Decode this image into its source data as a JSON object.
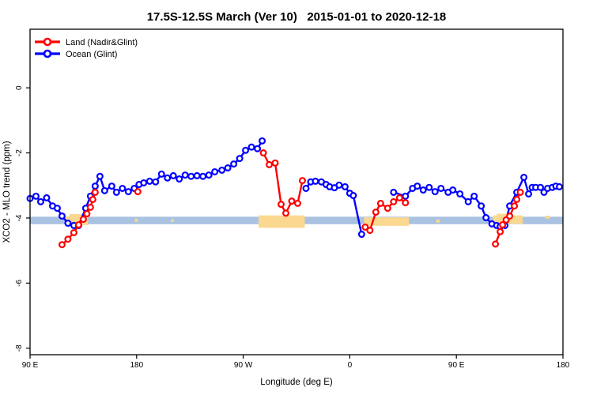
{
  "chart_data": {
    "type": "line",
    "title": "17.5S-12.5S March (Ver 10)   2015-01-01 to 2020-12-18",
    "xlabel": "Longitude (deg E)",
    "ylabel": "XCO2 - MLO trend (ppm)",
    "xlim": [
      90,
      540
    ],
    "ylim": [
      -8.2,
      1.8
    ],
    "grid": false,
    "legend_position": "top-left",
    "x_ticks": [
      {
        "value": 90,
        "label": "90 E"
      },
      {
        "value": 180,
        "label": "180"
      },
      {
        "value": 270,
        "label": "90 W"
      },
      {
        "value": 360,
        "label": "0"
      },
      {
        "value": 450,
        "label": "90 E"
      },
      {
        "value": 540,
        "label": "180"
      }
    ],
    "y_ticks": [
      {
        "value": 0,
        "label": "0"
      },
      {
        "value": -2,
        "label": "-2"
      },
      {
        "value": -4,
        "label": "-4"
      },
      {
        "value": -6,
        "label": "-6"
      },
      {
        "value": -8,
        "label": "-8"
      }
    ],
    "band": {
      "y0": -4.19,
      "y1": -3.96,
      "color": "#a9c2e1",
      "note": "horizontal reference band spanning full x-range"
    },
    "patch_color": "#fbd88f",
    "patches": [
      {
        "x0": 120,
        "x1": 139,
        "y0": -4.22,
        "y1": -3.95
      },
      {
        "x0": 123,
        "x1": 134,
        "y0": -3.98,
        "y1": -3.88
      },
      {
        "x0": 283,
        "x1": 322,
        "y0": -4.3,
        "y1": -3.92
      },
      {
        "x0": 372,
        "x1": 410,
        "y0": -4.24,
        "y1": -3.98
      },
      {
        "x0": 481,
        "x1": 506,
        "y0": -4.18,
        "y1": -3.92
      },
      {
        "x0": 484,
        "x1": 497,
        "y0": -3.99,
        "y1": -3.87
      },
      {
        "x0": 178.5,
        "x1": 181,
        "y0": -4.12,
        "y1": -4.02
      },
      {
        "x0": 209,
        "x1": 211.5,
        "y0": -4.12,
        "y1": -4.04
      },
      {
        "x0": 433,
        "x1": 436,
        "y0": -4.14,
        "y1": -4.05
      },
      {
        "x0": 525,
        "x1": 529,
        "y0": -4.02,
        "y1": -3.93
      }
    ],
    "series": [
      {
        "name": "Land (Nadir&Glint)",
        "color": "#ff0000",
        "marker": "open-circle",
        "segments": [
          [
            [
              117,
              -4.82
            ],
            [
              122,
              -4.65
            ],
            [
              127,
              -4.45
            ],
            [
              131,
              -4.21
            ],
            [
              135,
              -4.04
            ],
            [
              138,
              -3.87
            ],
            [
              141,
              -3.67
            ],
            [
              143,
              -3.43
            ],
            [
              145,
              -3.21
            ]
          ],
          [
            [
              181,
              -3.19
            ]
          ],
          [
            [
              287,
              -2.0
            ],
            [
              292,
              -2.36
            ],
            [
              297,
              -2.31
            ],
            [
              302,
              -3.58
            ],
            [
              306,
              -3.85
            ],
            [
              311,
              -3.48
            ],
            [
              316,
              -3.55
            ],
            [
              320,
              -2.85
            ]
          ],
          [
            [
              373,
              -4.28
            ],
            [
              377,
              -4.38
            ],
            [
              382,
              -3.82
            ],
            [
              386,
              -3.55
            ],
            [
              392,
              -3.7
            ],
            [
              397,
              -3.5
            ],
            [
              402,
              -3.38
            ],
            [
              407,
              -3.53
            ]
          ],
          [
            [
              483,
              -4.8
            ],
            [
              487,
              -4.42
            ],
            [
              489,
              -4.21
            ],
            [
              492,
              -4.06
            ],
            [
              495,
              -3.94
            ],
            [
              499,
              -3.63
            ],
            [
              501,
              -3.43
            ],
            [
              504,
              -3.21
            ]
          ]
        ]
      },
      {
        "name": "Ocean (Glint)",
        "color": "#0000ff",
        "marker": "open-circle",
        "segments": [
          [
            [
              90,
              -3.4
            ],
            [
              95,
              -3.33
            ],
            [
              99,
              -3.5
            ],
            [
              104,
              -3.38
            ],
            [
              109,
              -3.63
            ],
            [
              113,
              -3.7
            ],
            [
              117,
              -3.94
            ],
            [
              122,
              -4.16
            ],
            [
              127,
              -4.23
            ],
            [
              131,
              -4.23
            ],
            [
              137,
              -3.7
            ],
            [
              141,
              -3.33
            ],
            [
              145,
              -3.02
            ],
            [
              149,
              -2.72
            ],
            [
              153,
              -3.16
            ],
            [
              159,
              -3.02
            ],
            [
              163,
              -3.21
            ],
            [
              168,
              -3.09
            ],
            [
              173,
              -3.19
            ],
            [
              178,
              -3.09
            ],
            [
              182,
              -2.97
            ],
            [
              186,
              -2.92
            ],
            [
              191,
              -2.87
            ],
            [
              196,
              -2.89
            ],
            [
              201,
              -2.65
            ],
            [
              206,
              -2.77
            ],
            [
              211,
              -2.7
            ],
            [
              216,
              -2.8
            ],
            [
              221,
              -2.68
            ],
            [
              226,
              -2.72
            ],
            [
              231,
              -2.7
            ],
            [
              236,
              -2.72
            ],
            [
              241,
              -2.68
            ],
            [
              246,
              -2.58
            ],
            [
              252,
              -2.53
            ],
            [
              257,
              -2.46
            ],
            [
              262,
              -2.34
            ],
            [
              267,
              -2.17
            ],
            [
              272,
              -1.92
            ],
            [
              277,
              -1.82
            ],
            [
              282,
              -1.87
            ],
            [
              286,
              -1.63
            ]
          ],
          [
            [
              323,
              -3.09
            ],
            [
              327,
              -2.89
            ],
            [
              331,
              -2.87
            ],
            [
              336,
              -2.89
            ],
            [
              340,
              -2.97
            ],
            [
              343,
              -3.04
            ],
            [
              347,
              -3.07
            ],
            [
              351,
              -2.99
            ],
            [
              356,
              -3.04
            ],
            [
              360,
              -3.24
            ],
            [
              363,
              -3.31
            ],
            [
              370,
              -4.5
            ]
          ],
          [
            [
              397,
              -3.21
            ],
            [
              407,
              -3.33
            ],
            [
              413,
              -3.09
            ],
            [
              417,
              -3.02
            ],
            [
              422,
              -3.14
            ],
            [
              427,
              -3.06
            ],
            [
              432,
              -3.19
            ],
            [
              437,
              -3.09
            ],
            [
              443,
              -3.21
            ],
            [
              447,
              -3.14
            ],
            [
              453,
              -3.26
            ],
            [
              460,
              -3.5
            ],
            [
              465,
              -3.33
            ],
            [
              471,
              -3.63
            ],
            [
              475,
              -3.99
            ],
            [
              480,
              -4.18
            ],
            [
              484,
              -4.23
            ],
            [
              487,
              -4.26
            ],
            [
              491,
              -4.23
            ],
            [
              495,
              -3.63
            ],
            [
              501,
              -3.21
            ],
            [
              507,
              -2.75
            ],
            [
              511,
              -3.26
            ],
            [
              514,
              -3.06
            ],
            [
              517,
              -3.06
            ],
            [
              521,
              -3.06
            ],
            [
              524,
              -3.21
            ],
            [
              527,
              -3.09
            ],
            [
              531,
              -3.06
            ],
            [
              534,
              -3.02
            ],
            [
              537,
              -3.04
            ]
          ]
        ]
      }
    ]
  },
  "legend": {
    "items": [
      {
        "label": "Land (Nadir&Glint)",
        "color": "#ff0000"
      },
      {
        "label": "Ocean (Glint)",
        "color": "#0000ff"
      }
    ]
  }
}
